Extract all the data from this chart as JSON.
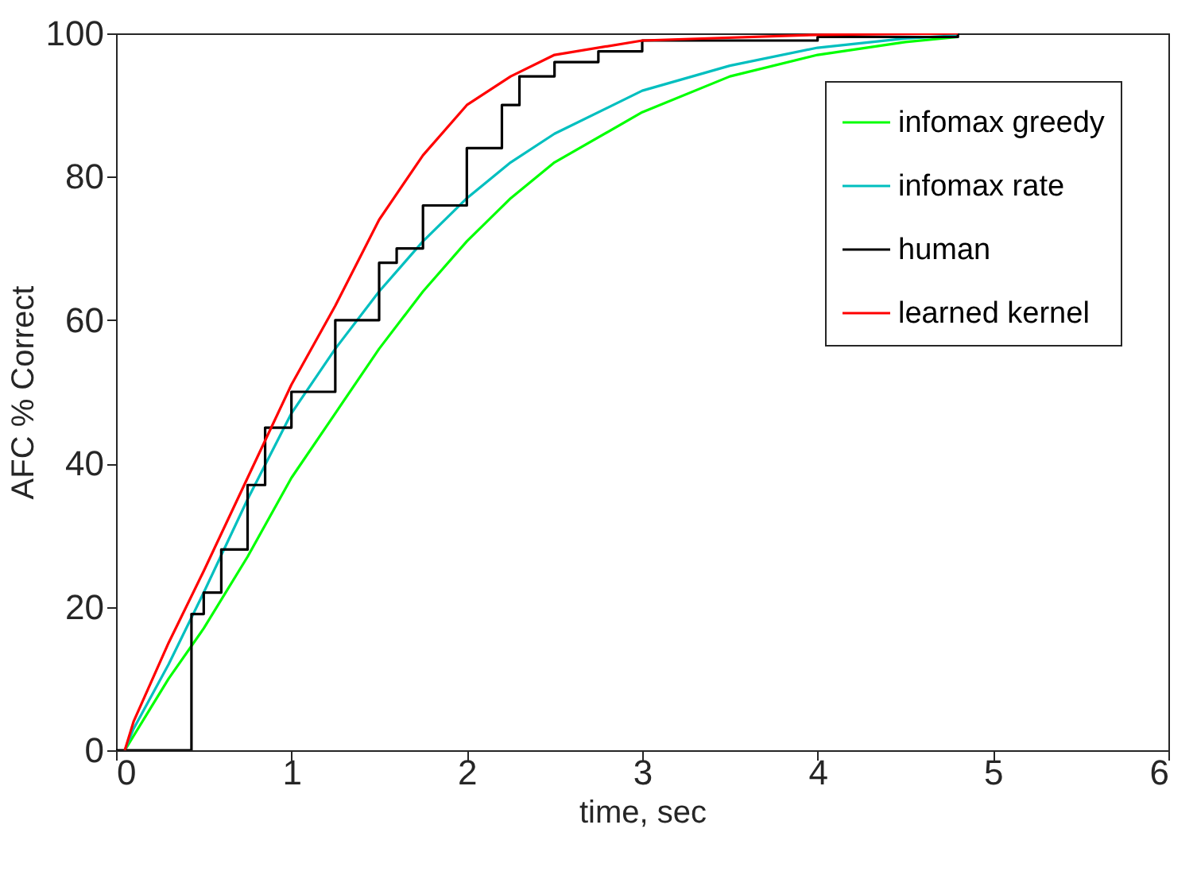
{
  "chart_data": {
    "type": "line",
    "xlabel": "time, sec",
    "ylabel": "AFC % Correct",
    "xlim": [
      0,
      6
    ],
    "ylim": [
      0,
      100
    ],
    "xticks": [
      0,
      1,
      2,
      3,
      4,
      5,
      6
    ],
    "yticks": [
      0,
      20,
      40,
      60,
      80,
      100
    ],
    "legend": "top right",
    "series": [
      {
        "name": "infomax greedy",
        "color": "#00ff00",
        "x": [
          0.05,
          0.1,
          0.2,
          0.3,
          0.5,
          0.75,
          1.0,
          1.25,
          1.5,
          1.75,
          2.0,
          2.25,
          2.5,
          3.0,
          3.5,
          4.0,
          4.5,
          4.8
        ],
        "values": [
          0,
          2,
          6,
          10,
          17,
          27,
          38,
          47,
          56,
          64,
          71,
          77,
          82,
          89,
          94,
          97,
          98.8,
          99.5
        ]
      },
      {
        "name": "infomax rate",
        "color": "#00bfbf",
        "x": [
          0.05,
          0.1,
          0.3,
          0.5,
          0.75,
          1.0,
          1.25,
          1.5,
          1.75,
          2.0,
          2.25,
          2.5,
          3.0,
          3.5,
          4.0,
          4.5,
          4.8
        ],
        "values": [
          0,
          3,
          12,
          22,
          35,
          47,
          56,
          64,
          71,
          77,
          82,
          86,
          92,
          95.5,
          98,
          99.3,
          99.7
        ]
      },
      {
        "name": "human",
        "type": "step",
        "color": "#000000",
        "x": [
          0,
          0.43,
          0.5,
          0.6,
          0.75,
          0.85,
          1.0,
          1.25,
          1.5,
          1.6,
          1.75,
          2.0,
          2.2,
          2.3,
          2.5,
          2.75,
          3.0,
          4.0,
          4.8
        ],
        "values": [
          0,
          19,
          22,
          28,
          37,
          45,
          50,
          60,
          68,
          70,
          76,
          84,
          90,
          94,
          96,
          97.5,
          99,
          99.5,
          100
        ]
      },
      {
        "name": "learned kernel",
        "color": "#ff0000",
        "x": [
          0.05,
          0.1,
          0.3,
          0.5,
          0.75,
          1.0,
          1.25,
          1.5,
          1.75,
          2.0,
          2.25,
          2.5,
          3.0,
          4.0,
          4.8
        ],
        "values": [
          0,
          4,
          15,
          25,
          38,
          51,
          62,
          74,
          83,
          90,
          94,
          97,
          99,
          99.8,
          100
        ]
      }
    ]
  }
}
